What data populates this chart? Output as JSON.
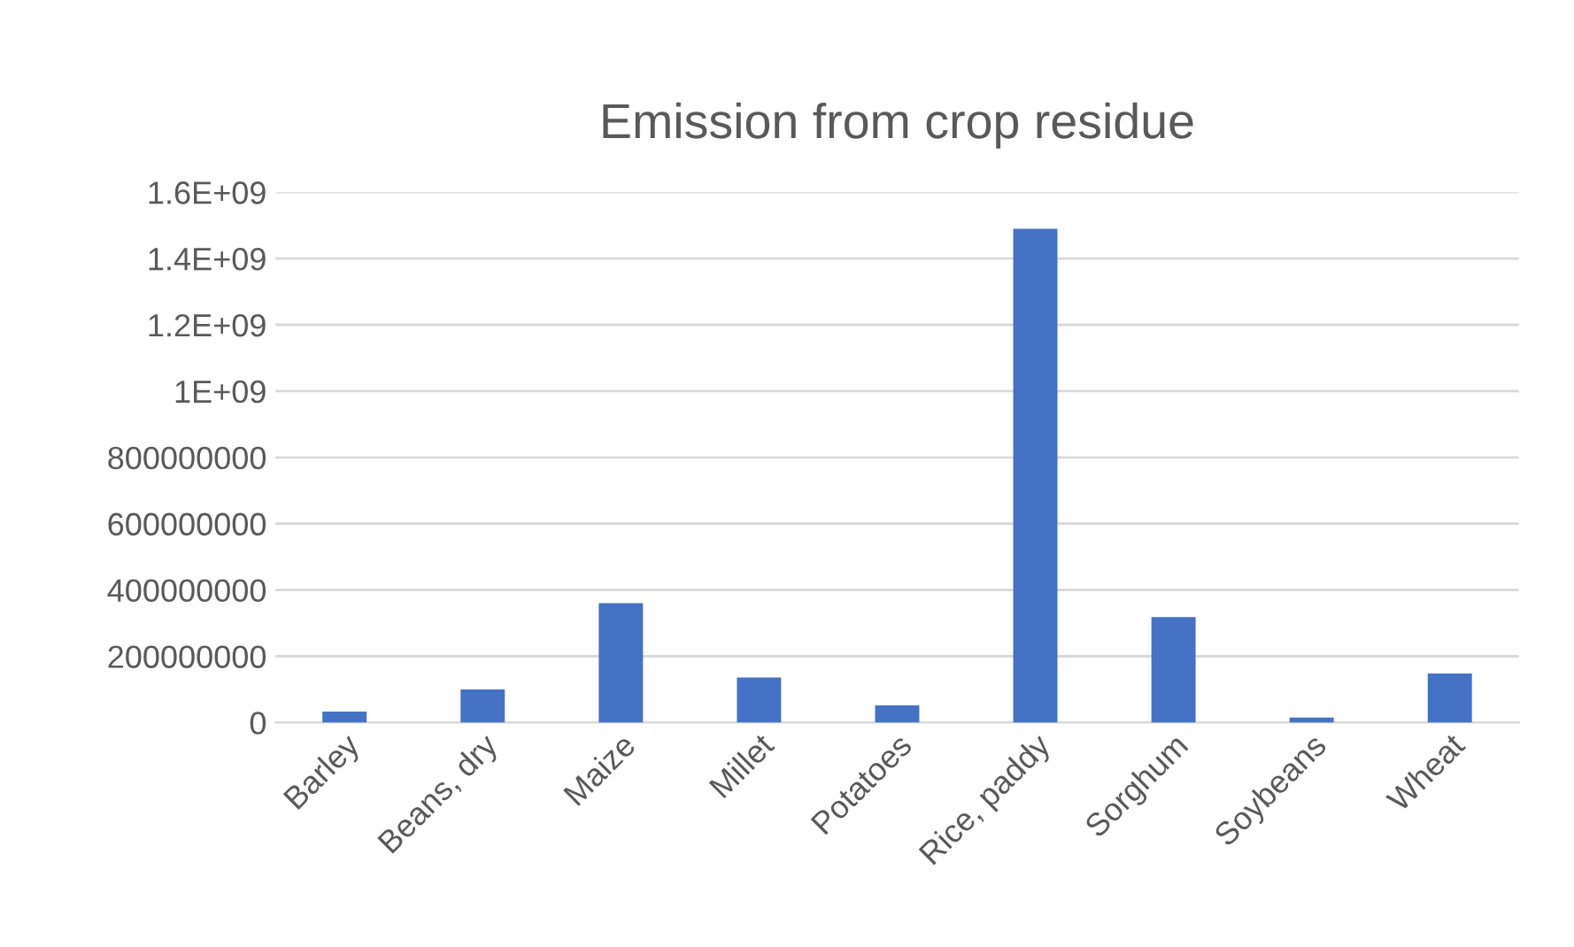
{
  "chart_data": {
    "type": "bar",
    "title": "Emission from crop residue",
    "categories": [
      "Barley",
      "Beans, dry",
      "Maize",
      "Millet",
      "Potatoes",
      "Rice, paddy",
      "Sorghum",
      "Soybeans",
      "Wheat"
    ],
    "values": [
      33000000,
      100000000,
      360000000,
      136000000,
      52000000,
      1490000000,
      318000000,
      15000000,
      148000000
    ],
    "color": "#4472c4",
    "ylim": [
      0,
      1600000000
    ],
    "yticks": [
      0,
      200000000,
      400000000,
      600000000,
      800000000,
      {
        "value": 1000000000,
        "label": "1E+09"
      },
      {
        "value": 1200000000,
        "label": "1.2E+09"
      },
      {
        "value": 1400000000,
        "label": "1.4E+09"
      },
      {
        "value": 1600000000,
        "label": "1.6E+09"
      }
    ],
    "grid": "y"
  }
}
